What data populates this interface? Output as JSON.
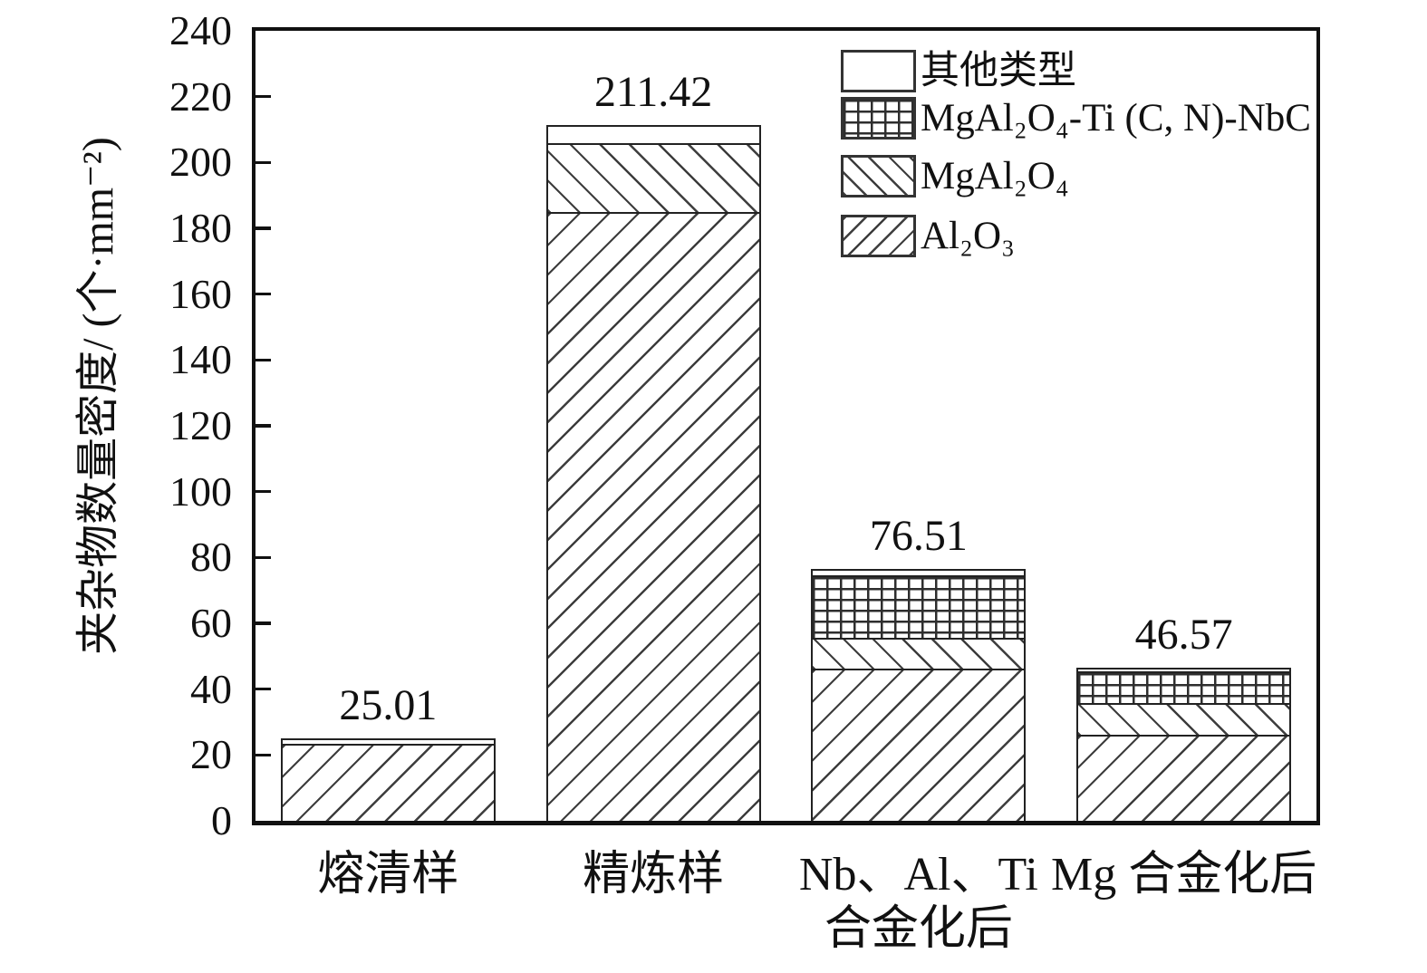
{
  "chart_data": {
    "type": "bar",
    "stacked": true,
    "title": "",
    "ylabel": "夹杂物数量密度/ (个·mm⁻²)",
    "xlabel": "",
    "ylim": [
      0,
      240
    ],
    "ytick_step": 20,
    "yticks": [
      "0",
      "20",
      "40",
      "60",
      "80",
      "100",
      "120",
      "140",
      "160",
      "180",
      "200",
      "220",
      "240"
    ],
    "grid": false,
    "legend_position": "top-right",
    "categories": [
      "熔清样",
      "精炼样",
      "Nb、Al、Ti\n合金化后",
      "Mg 合金化后"
    ],
    "totals": [
      "25.01",
      "211.42",
      "76.51",
      "46.57"
    ],
    "series": [
      {
        "name": "Al₂O₃",
        "key": "al2o3",
        "pattern": "pat-forward",
        "values": [
          23.5,
          185.0,
          46.3,
          26.2
        ]
      },
      {
        "name": "MgAl₂O₄",
        "key": "mgal2o4",
        "pattern": "pat-back",
        "values": [
          0,
          20.9,
          9.3,
          9.7
        ]
      },
      {
        "name": "MgAl₂O₄-Ti (C, N)-NbC",
        "key": "mgal2o4-ticn-nbc",
        "pattern": "pat-grid",
        "values": [
          0,
          0,
          19.0,
          9.6
        ]
      },
      {
        "name": "其他类型",
        "key": "other",
        "pattern": "pat-plain",
        "values": [
          1.51,
          5.52,
          1.91,
          1.07
        ]
      }
    ],
    "legend": [
      {
        "label": "其他类型",
        "pattern": "pat-plain"
      },
      {
        "label": "MgAl₂O₄-Ti (C, N)-NbC",
        "pattern": "pat-grid"
      },
      {
        "label": "MgAl₂O₄",
        "pattern": "pat-back"
      },
      {
        "label": "Al₂O₃",
        "pattern": "pat-forward"
      }
    ],
    "colors": {
      "ink": "#111111",
      "hatch_line": "#3d3d3d",
      "background": "#ffffff"
    }
  }
}
